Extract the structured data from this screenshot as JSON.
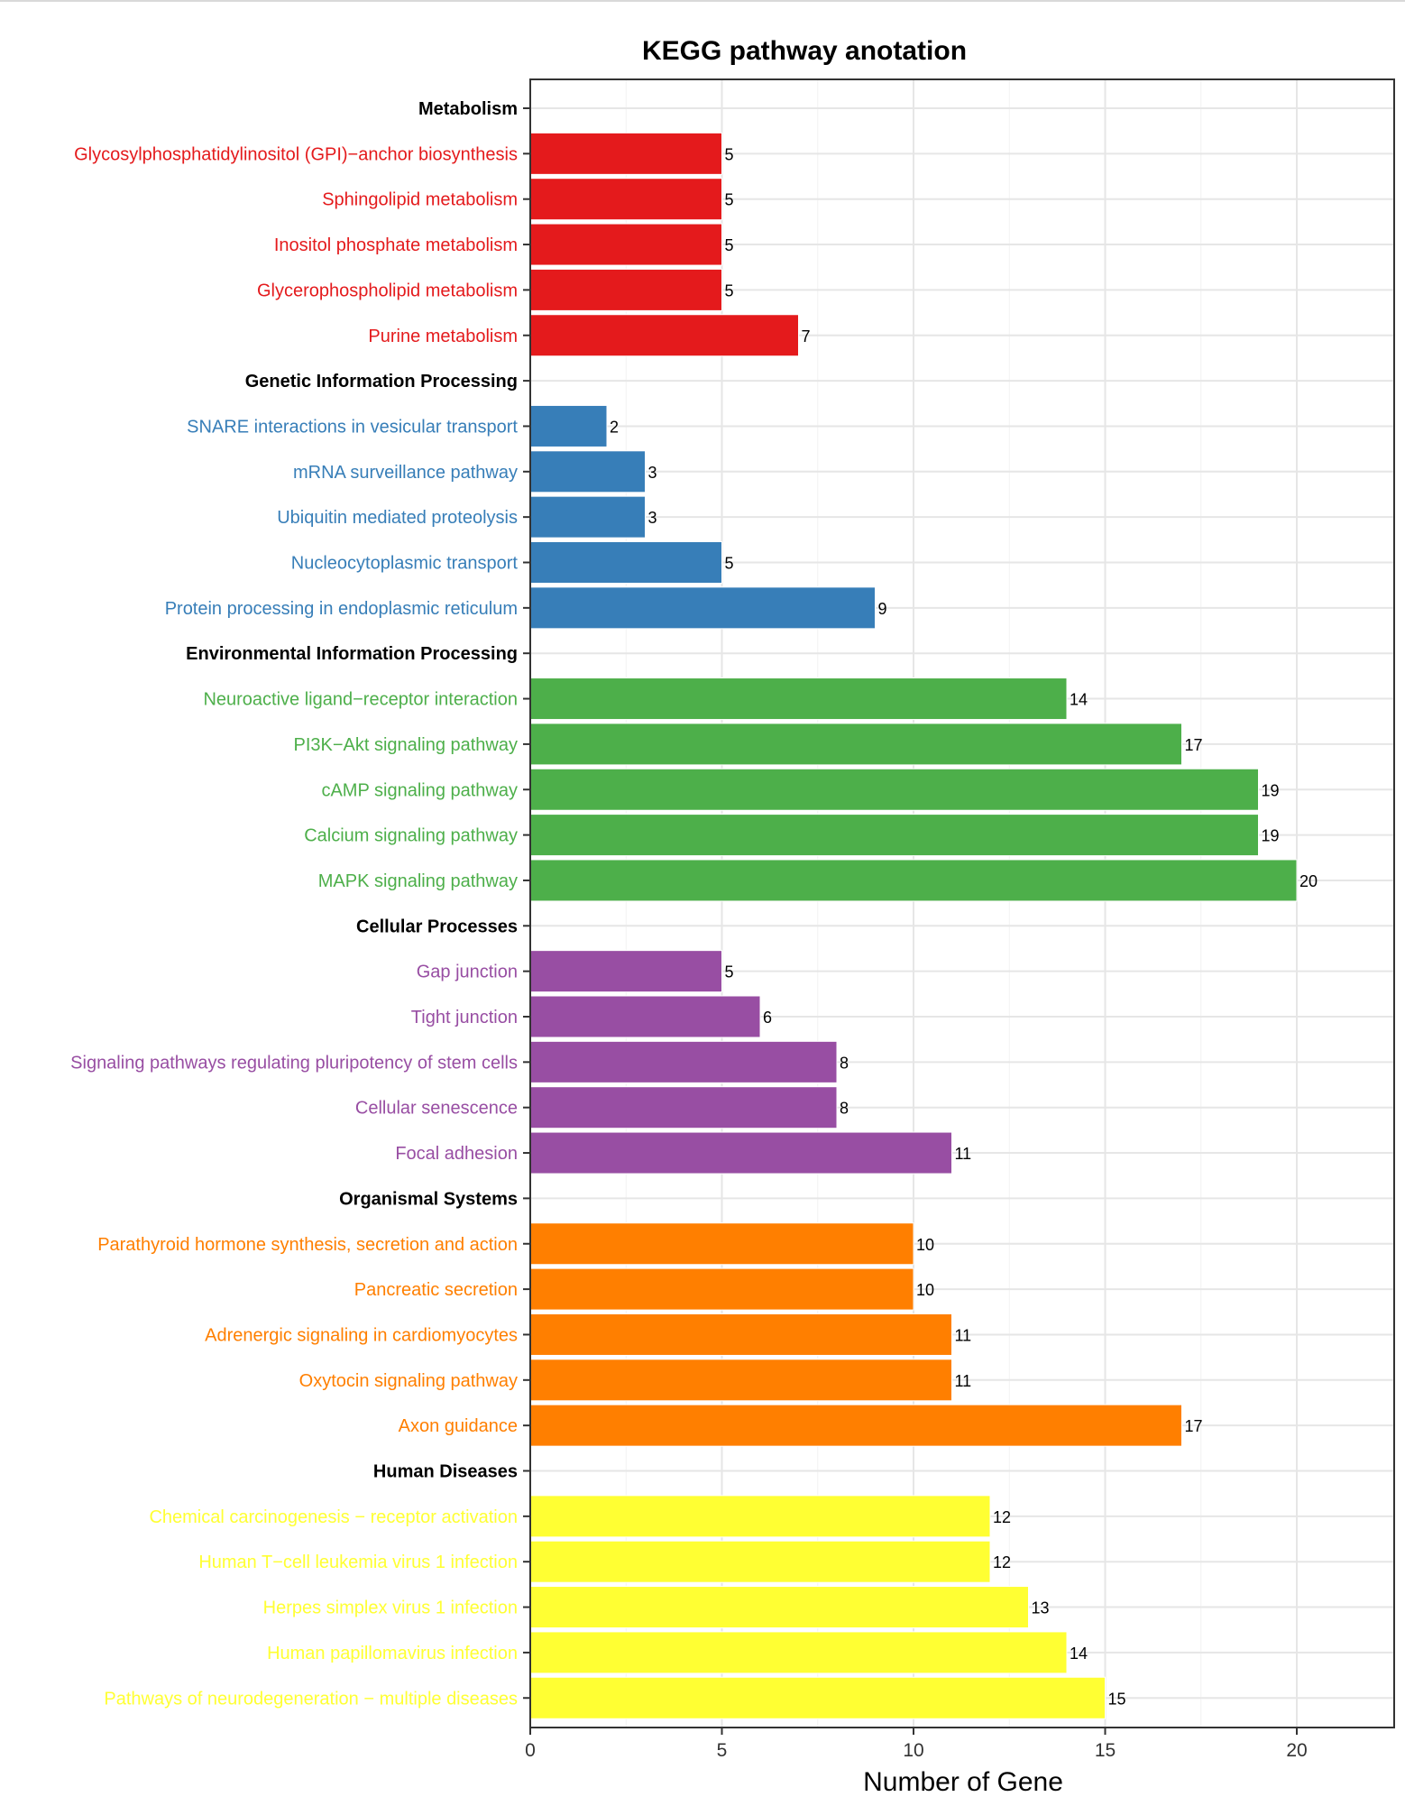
{
  "chart_data": {
    "type": "bar",
    "orientation": "horizontal",
    "title": "KEGG pathway anotation",
    "xlabel": "Number of Gene",
    "ylabel": "",
    "xlim": [
      0,
      22.5
    ],
    "xticks": [
      0,
      5,
      10,
      15,
      20
    ],
    "grid": true,
    "legend": "none",
    "groups": [
      {
        "name": "Metabolism",
        "color": "#E41A1C",
        "items": [
          {
            "label": "Glycosylphosphatidylinositol (GPI)−anchor biosynthesis",
            "value": 5
          },
          {
            "label": "Sphingolipid metabolism",
            "value": 5
          },
          {
            "label": "Inositol phosphate metabolism",
            "value": 5
          },
          {
            "label": "Glycerophospholipid metabolism",
            "value": 5
          },
          {
            "label": "Purine metabolism",
            "value": 7
          }
        ]
      },
      {
        "name": "Genetic Information Processing",
        "color": "#377EB8",
        "items": [
          {
            "label": "SNARE interactions in vesicular transport",
            "value": 2
          },
          {
            "label": "mRNA surveillance pathway",
            "value": 3
          },
          {
            "label": "Ubiquitin mediated proteolysis",
            "value": 3
          },
          {
            "label": "Nucleocytoplasmic transport",
            "value": 5
          },
          {
            "label": "Protein processing in endoplasmic reticulum",
            "value": 9
          }
        ]
      },
      {
        "name": "Environmental Information Processing",
        "color": "#4DAF4A",
        "items": [
          {
            "label": "Neuroactive ligand−receptor interaction",
            "value": 14
          },
          {
            "label": "PI3K−Akt signaling pathway",
            "value": 17
          },
          {
            "label": "cAMP signaling pathway",
            "value": 19
          },
          {
            "label": "Calcium signaling pathway",
            "value": 19
          },
          {
            "label": "MAPK signaling pathway",
            "value": 20
          }
        ]
      },
      {
        "name": "Cellular Processes",
        "color": "#984EA3",
        "items": [
          {
            "label": "Gap junction",
            "value": 5
          },
          {
            "label": "Tight junction",
            "value": 6
          },
          {
            "label": "Signaling pathways regulating pluripotency of stem cells",
            "value": 8
          },
          {
            "label": "Cellular senescence",
            "value": 8
          },
          {
            "label": "Focal adhesion",
            "value": 11
          }
        ]
      },
      {
        "name": "Organismal Systems",
        "color": "#FF7F00",
        "items": [
          {
            "label": "Parathyroid hormone synthesis, secretion and action",
            "value": 10
          },
          {
            "label": "Pancreatic secretion",
            "value": 10
          },
          {
            "label": "Adrenergic signaling in cardiomyocytes",
            "value": 11
          },
          {
            "label": "Oxytocin signaling pathway",
            "value": 11
          },
          {
            "label": "Axon guidance",
            "value": 17
          }
        ]
      },
      {
        "name": "Human Diseases",
        "color": "#FFFF33",
        "items": [
          {
            "label": "Chemical carcinogenesis − receptor activation",
            "value": 12
          },
          {
            "label": "Human T−cell leukemia virus 1 infection",
            "value": 12
          },
          {
            "label": "Herpes simplex virus 1 infection",
            "value": 13
          },
          {
            "label": "Human papillomavirus infection",
            "value": 14
          },
          {
            "label": "Pathways of neurodegeneration − multiple diseases",
            "value": 15
          }
        ]
      }
    ]
  }
}
